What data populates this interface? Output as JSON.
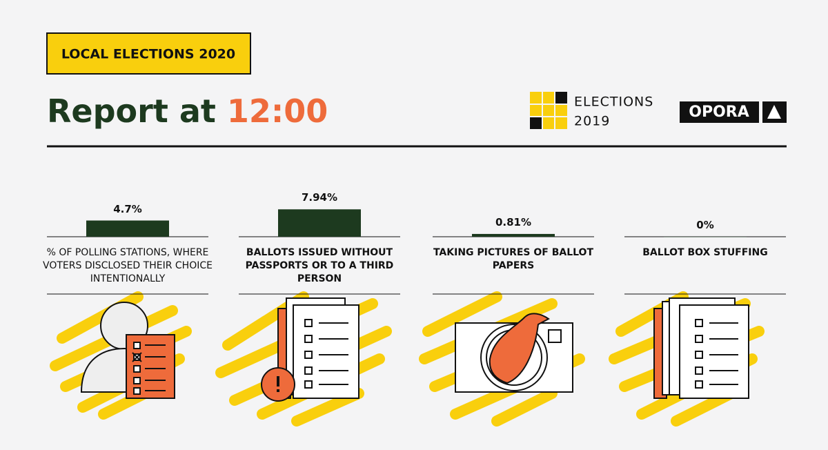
{
  "header": {
    "badge": "LOCAL ELECTIONS 2020",
    "title": "Report at",
    "time": "12:00"
  },
  "logos": {
    "elections": "ELECTIONS",
    "year": "2019",
    "opora": "OPORA"
  },
  "chart_data": {
    "type": "bar",
    "categories": [
      "% OF POLLING STATIONS, WHERE VOTERS DISCLOSED THEIR CHOICE INTENTIONALLY",
      "BALLOTS ISSUED WITHOUT PASSPORTS OR TO A THIRD PERSON",
      "TAKING PICTURES OF BALLOT PAPERS",
      "BALLOT BOX STUFFING"
    ],
    "values": [
      4.7,
      7.94,
      0.81,
      0
    ],
    "value_labels": [
      "4.7%",
      "7.94%",
      "0.81%",
      "0%"
    ],
    "color": "#1d3a1f"
  }
}
